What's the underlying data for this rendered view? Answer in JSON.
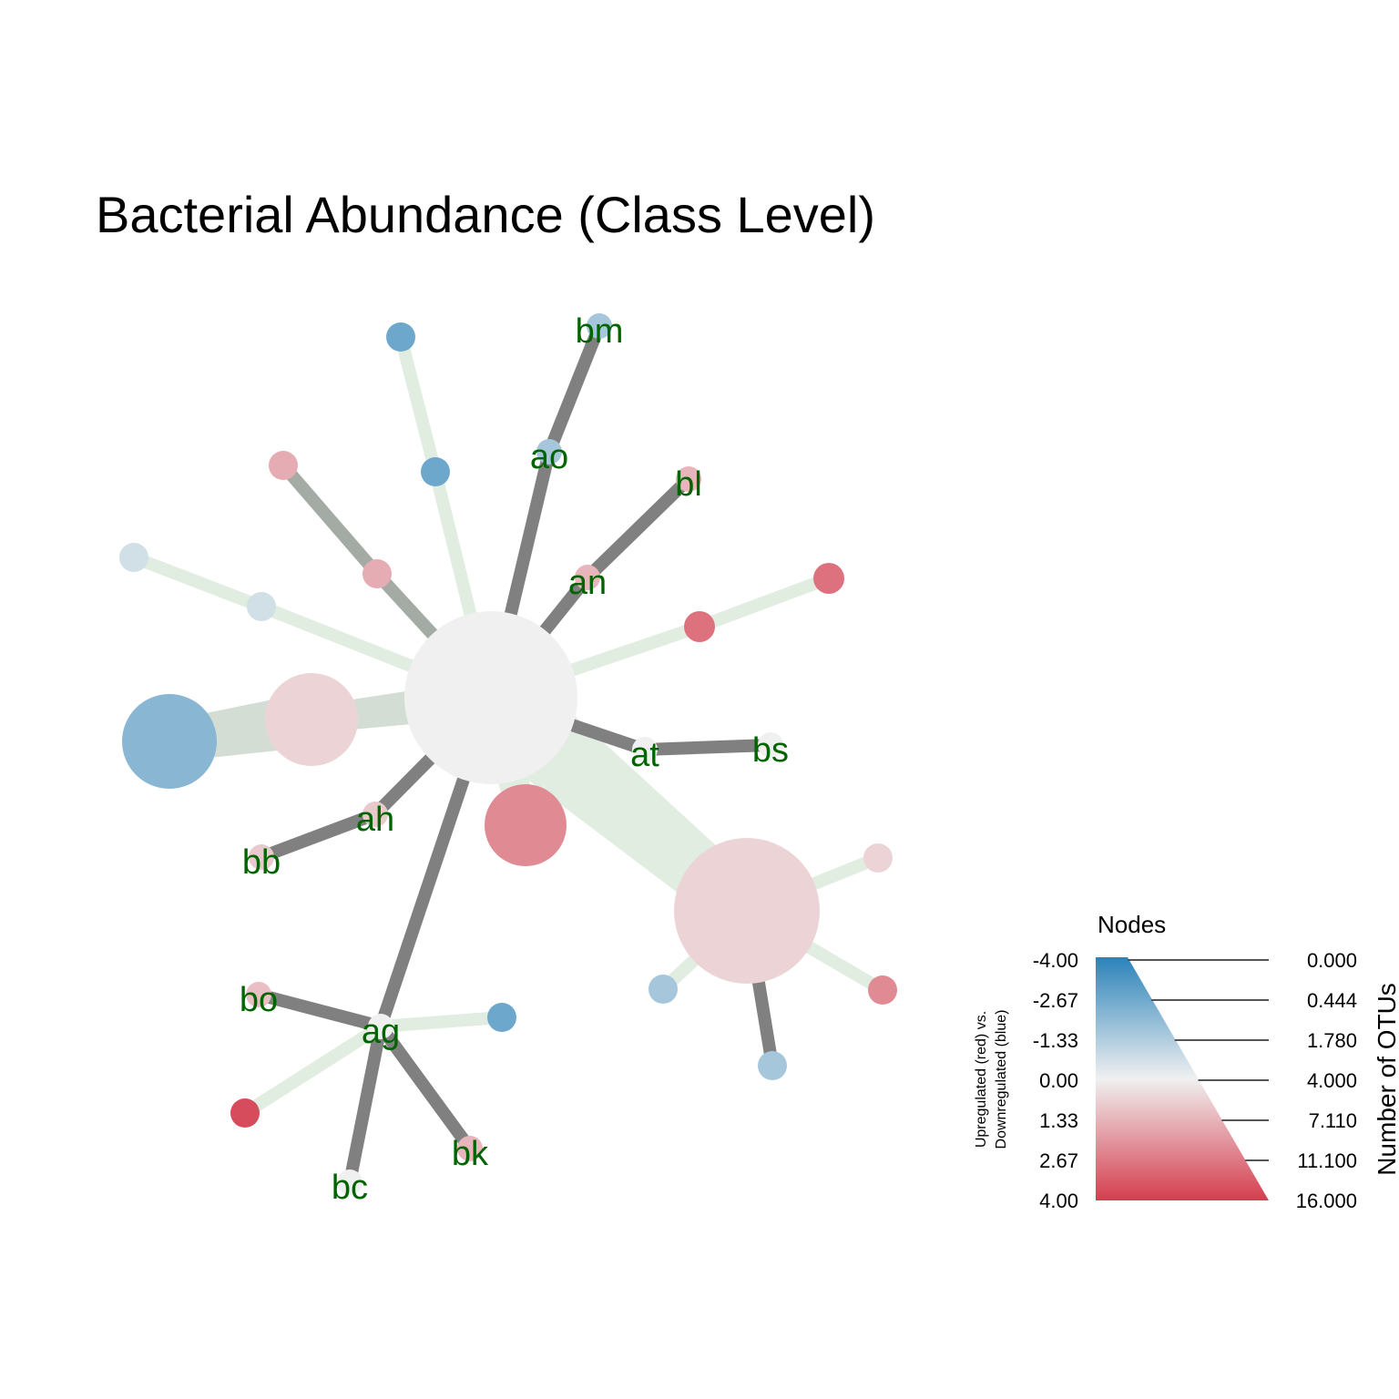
{
  "title": "Bacterial Abundance (Class Level)",
  "colors": {
    "up": "#d53e4f",
    "down": "#2b83ba",
    "neutral": "#f0f0f0",
    "edge_gray": "#808080",
    "edge_green": "#e0ede0",
    "label": "#006400"
  },
  "nodes": [
    {
      "id": "root",
      "label": "",
      "value": 0.0,
      "otus": 16.0
    },
    {
      "id": "n_big_red",
      "label": "",
      "value": 2.0,
      "otus": 4.0
    },
    {
      "id": "n_left_pink",
      "label": "",
      "value": 0.4,
      "otus": 4.5
    },
    {
      "id": "n_left_blue",
      "label": "",
      "value": -1.8,
      "otus": 4.8
    },
    {
      "id": "n_br_pink",
      "label": "",
      "value": 0.4,
      "otus": 9.0
    },
    {
      "id": "n_grey1",
      "label": "",
      "value": -0.4,
      "otus": 0.3
    },
    {
      "id": "n_grey2",
      "label": "",
      "value": -0.4,
      "otus": 0.3
    },
    {
      "id": "n_pink_a",
      "label": "",
      "value": 1.2,
      "otus": 0.3
    },
    {
      "id": "n_pink_b",
      "label": "",
      "value": 1.2,
      "otus": 0.3
    },
    {
      "id": "n_blue_a",
      "label": "",
      "value": -2.4,
      "otus": 0.3
    },
    {
      "id": "n_blue_b",
      "label": "",
      "value": -2.4,
      "otus": 0.3
    },
    {
      "id": "ao",
      "label": "ao",
      "value": -1.2,
      "otus": 0.1
    },
    {
      "id": "bm",
      "label": "bm",
      "value": -1.2,
      "otus": 0.1
    },
    {
      "id": "an",
      "label": "an",
      "value": 1.0,
      "otus": 0.1
    },
    {
      "id": "bl",
      "label": "bl",
      "value": 1.0,
      "otus": 0.1
    },
    {
      "id": "n_red_a",
      "label": "",
      "value": 2.6,
      "otus": 0.3
    },
    {
      "id": "n_red_b",
      "label": "",
      "value": 2.6,
      "otus": 0.3
    },
    {
      "id": "at",
      "label": "at",
      "value": 0.0,
      "otus": 0.1
    },
    {
      "id": "bs",
      "label": "bs",
      "value": 0.0,
      "otus": 0.1
    },
    {
      "id": "ah",
      "label": "ah",
      "value": 0.6,
      "otus": 0.1
    },
    {
      "id": "bb",
      "label": "bb",
      "value": 0.6,
      "otus": 0.1
    },
    {
      "id": "ag",
      "label": "ag",
      "value": 0.0,
      "otus": 0.1
    },
    {
      "id": "bo",
      "label": "bo",
      "value": 0.8,
      "otus": 0.1
    },
    {
      "id": "bc",
      "label": "bc",
      "value": 0.0,
      "otus": 0.1
    },
    {
      "id": "bk",
      "label": "bk",
      "value": 1.0,
      "otus": 0.1
    },
    {
      "id": "n_ag_blue",
      "label": "",
      "value": -2.4,
      "otus": 0.3
    },
    {
      "id": "n_ag_red",
      "label": "",
      "value": 3.6,
      "otus": 0.3
    },
    {
      "id": "n_br_pink2",
      "label": "",
      "value": 0.4,
      "otus": 0.3
    },
    {
      "id": "n_br_red",
      "label": "",
      "value": 2.0,
      "otus": 0.3
    },
    {
      "id": "n_br_blue1",
      "label": "",
      "value": -1.2,
      "otus": 0.3
    },
    {
      "id": "n_br_blue2",
      "label": "",
      "value": -1.2,
      "otus": 0.3
    }
  ],
  "legend": {
    "title": "Nodes",
    "color_axis_label_line1": "Upregulated (red) vs.",
    "color_axis_label_line2": "Downregulated (blue)",
    "color_ticks": [
      "-4.00",
      "-2.67",
      "-1.33",
      "0.00",
      "1.33",
      "2.67",
      "4.00"
    ],
    "size_axis_label": "Number of OTUs",
    "size_ticks": [
      "0.000",
      "0.444",
      "1.780",
      "4.000",
      "7.110",
      "11.100",
      "16.000"
    ]
  }
}
